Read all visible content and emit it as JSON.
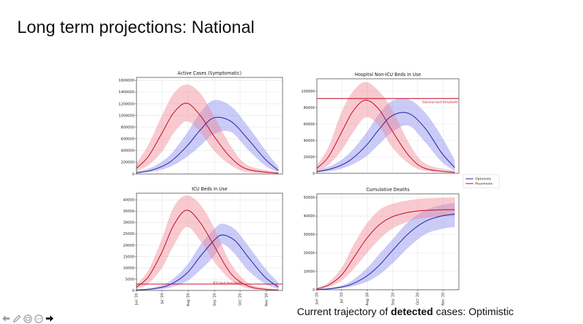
{
  "slide": {
    "title": "Long term projections: National",
    "caption_prefix": "Current trajectory of ",
    "caption_bold": "detected",
    "caption_suffix": " cases: Optimistic"
  },
  "toolbar": {
    "icons": [
      "back-arrow-icon",
      "pen-icon",
      "slides-icon",
      "more-icon",
      "forward-arrow-icon"
    ]
  },
  "colors": {
    "optimistic": "#2b2b9e",
    "optimistic_band": "#8c8cf0",
    "pessimistic": "#c8102e",
    "pessimistic_band": "#f08a96",
    "threshold": "#c8102e"
  },
  "legend": {
    "placement": "right-center",
    "entries": [
      "Optimistic",
      "Pessimistic"
    ]
  },
  "chart_data": [
    {
      "type": "line",
      "title": "Active Cases (Symptomatic)",
      "x_domain": [
        "2020-06-01",
        "2020-11-20"
      ],
      "x_ticks": [],
      "ylim": [
        0,
        1650000
      ],
      "y_ticks": [
        0,
        200000,
        400000,
        600000,
        800000,
        1000000,
        1200000,
        1400000,
        1600000
      ],
      "grid": true,
      "series": [
        {
          "name": "Optimistic",
          "x": [
            "2020-06-01",
            "2020-06-20",
            "2020-07-10",
            "2020-07-30",
            "2020-08-15",
            "2020-08-31",
            "2020-09-20",
            "2020-10-10",
            "2020-10-30",
            "2020-11-15"
          ],
          "y": [
            20000,
            70000,
            200000,
            470000,
            750000,
            960000,
            900000,
            600000,
            260000,
            60000
          ],
          "lower": [
            10000,
            40000,
            120000,
            290000,
            480000,
            680000,
            720000,
            420000,
            150000,
            25000
          ],
          "upper": [
            40000,
            120000,
            320000,
            690000,
            1050000,
            1260000,
            1160000,
            820000,
            420000,
            120000
          ]
        },
        {
          "name": "Pessimistic",
          "x": [
            "2020-06-01",
            "2020-06-15",
            "2020-07-01",
            "2020-07-15",
            "2020-07-30",
            "2020-08-15",
            "2020-08-31",
            "2020-09-20",
            "2020-10-10",
            "2020-11-15"
          ],
          "y": [
            100000,
            300000,
            700000,
            1050000,
            1210000,
            1000000,
            650000,
            280000,
            80000,
            10000
          ],
          "lower": [
            50000,
            150000,
            380000,
            700000,
            900000,
            720000,
            400000,
            150000,
            30000,
            5000
          ],
          "upper": [
            180000,
            500000,
            1000000,
            1380000,
            1530000,
            1380000,
            1000000,
            480000,
            150000,
            30000
          ]
        }
      ]
    },
    {
      "type": "line",
      "title": "Hospital Non-ICU Beds in Use",
      "x_domain": [
        "2020-06-01",
        "2020-11-20"
      ],
      "x_ticks": [],
      "ylim": [
        0,
        115000
      ],
      "y_ticks": [
        0,
        20000,
        40000,
        60000,
        80000,
        100000
      ],
      "grid": true,
      "threshold": {
        "value": 91000,
        "label": "General bed threshold"
      },
      "series": [
        {
          "name": "Optimistic",
          "x": [
            "2020-06-01",
            "2020-06-20",
            "2020-07-10",
            "2020-07-30",
            "2020-08-15",
            "2020-08-31",
            "2020-09-20",
            "2020-10-10",
            "2020-10-30",
            "2020-11-15"
          ],
          "y": [
            2000,
            6000,
            15000,
            33000,
            53000,
            70000,
            73000,
            55000,
            25000,
            7000
          ],
          "lower": [
            1000,
            3000,
            9000,
            20000,
            35000,
            50000,
            58000,
            38000,
            14000,
            3000
          ],
          "upper": [
            4000,
            10000,
            24000,
            48000,
            72000,
            88000,
            90000,
            74000,
            45000,
            16000
          ]
        },
        {
          "name": "Pessimistic",
          "x": [
            "2020-06-01",
            "2020-06-15",
            "2020-07-01",
            "2020-07-15",
            "2020-07-30",
            "2020-08-15",
            "2020-08-31",
            "2020-09-20",
            "2020-10-10",
            "2020-11-15"
          ],
          "y": [
            6000,
            20000,
            50000,
            76000,
            89000,
            78000,
            52000,
            22000,
            6000,
            1000
          ],
          "lower": [
            3000,
            10000,
            28000,
            50000,
            68000,
            58000,
            32000,
            12000,
            3000,
            500
          ],
          "upper": [
            10000,
            32000,
            75000,
            100000,
            111000,
            100000,
            78000,
            38000,
            12000,
            3000
          ]
        }
      ]
    },
    {
      "type": "line",
      "title": "ICU Beds in Use",
      "x_domain": [
        "2020-06-01",
        "2020-11-20"
      ],
      "x_ticks": [
        "Jun '20",
        "Jul '20",
        "Aug '20",
        "Sep '20",
        "Oct '20",
        "Nov '20"
      ],
      "ylim": [
        0,
        43000
      ],
      "y_ticks": [
        0,
        5000,
        10000,
        15000,
        20000,
        25000,
        30000,
        35000,
        40000
      ],
      "grid": true,
      "threshold": {
        "value": 2800,
        "label": "ICU bed threshold"
      },
      "series": [
        {
          "name": "Optimistic",
          "x": [
            "2020-06-01",
            "2020-06-20",
            "2020-07-10",
            "2020-07-30",
            "2020-08-15",
            "2020-08-31",
            "2020-09-10",
            "2020-09-25",
            "2020-10-10",
            "2020-10-30",
            "2020-11-15"
          ],
          "y": [
            200,
            700,
            2500,
            7500,
            15000,
            22000,
            24500,
            22000,
            15000,
            6000,
            1500
          ],
          "lower": [
            100,
            300,
            1200,
            4000,
            9000,
            15000,
            20500,
            16000,
            9000,
            3000,
            700
          ],
          "upper": [
            400,
            1200,
            4000,
            11000,
            20000,
            27000,
            29500,
            27000,
            20000,
            10000,
            3500
          ]
        },
        {
          "name": "Pessimistic",
          "x": [
            "2020-06-01",
            "2020-06-15",
            "2020-07-01",
            "2020-07-15",
            "2020-07-30",
            "2020-08-15",
            "2020-08-31",
            "2020-09-20",
            "2020-10-10",
            "2020-10-30",
            "2020-11-15"
          ],
          "y": [
            1500,
            6000,
            17000,
            29000,
            35500,
            30000,
            20000,
            7500,
            2000,
            500,
            200
          ],
          "lower": [
            800,
            3000,
            10000,
            20000,
            28000,
            22000,
            13000,
            4500,
            1000,
            300,
            100
          ],
          "upper": [
            2500,
            9000,
            23000,
            37000,
            42000,
            38000,
            28000,
            12000,
            3500,
            1200,
            500
          ]
        }
      ]
    },
    {
      "type": "line",
      "title": "Cumulative Deaths",
      "x_domain": [
        "2020-06-01",
        "2020-11-20"
      ],
      "x_ticks": [
        "Jun '20",
        "Jul '20",
        "Aug '20",
        "Sep '20",
        "Oct '20",
        "Nov '20"
      ],
      "ylim": [
        0,
        52000
      ],
      "y_ticks": [
        0,
        10000,
        20000,
        30000,
        40000,
        50000
      ],
      "grid": true,
      "series": [
        {
          "name": "Optimistic",
          "x": [
            "2020-06-01",
            "2020-06-20",
            "2020-07-10",
            "2020-07-30",
            "2020-08-15",
            "2020-08-31",
            "2020-09-20",
            "2020-10-10",
            "2020-10-30",
            "2020-11-15"
          ],
          "y": [
            100,
            700,
            2500,
            7000,
            13000,
            21000,
            30500,
            37000,
            40000,
            41000
          ],
          "lower": [
            50,
            400,
            1500,
            4000,
            8000,
            14000,
            23000,
            30000,
            33000,
            34000
          ],
          "upper": [
            200,
            1200,
            4000,
            11000,
            19000,
            27000,
            37000,
            43000,
            46000,
            47000
          ]
        },
        {
          "name": "Pessimistic",
          "x": [
            "2020-06-01",
            "2020-06-15",
            "2020-07-01",
            "2020-07-15",
            "2020-07-30",
            "2020-08-15",
            "2020-08-31",
            "2020-09-20",
            "2020-10-10",
            "2020-11-15"
          ],
          "y": [
            500,
            2500,
            8000,
            17000,
            27000,
            35000,
            39500,
            42000,
            43000,
            43500
          ],
          "lower": [
            300,
            1500,
            5000,
            11000,
            19000,
            27000,
            33000,
            37000,
            39000,
            40000
          ],
          "upper": [
            1000,
            4000,
            12000,
            24000,
            35000,
            43000,
            46500,
            48500,
            49500,
            50000
          ]
        }
      ]
    }
  ]
}
